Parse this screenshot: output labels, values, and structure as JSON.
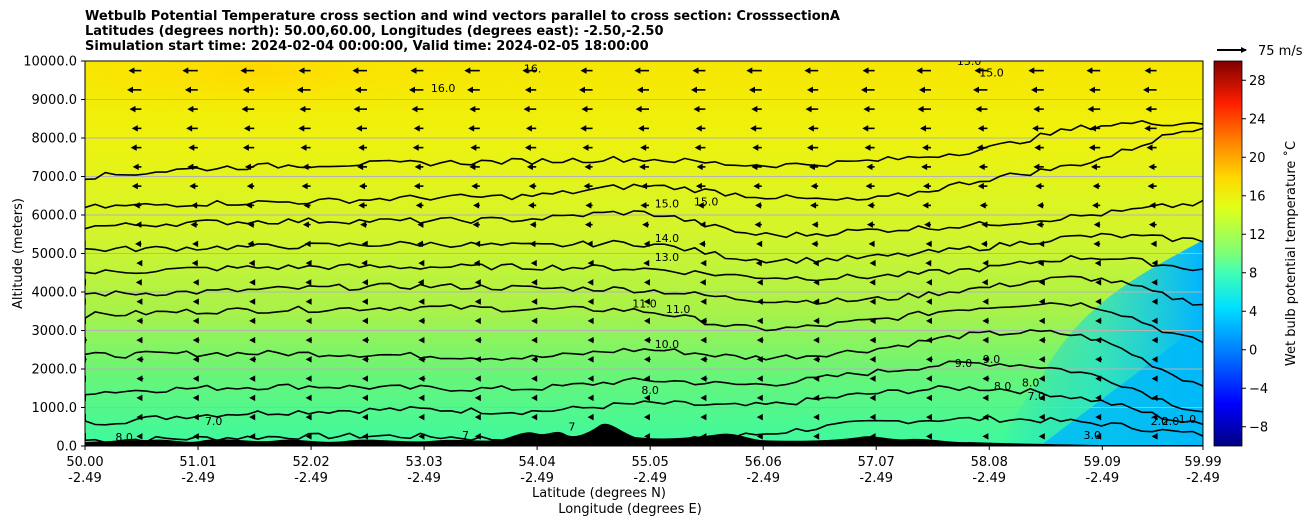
{
  "chart_data": {
    "type": "contour",
    "title_lines": [
      "Wetbulb Potential Temperature cross section and wind vectors parallel to cross section: CrosssectionA",
      "Latitudes (degrees north): 50.00,60.00, Longitudes (degrees east): -2.50,-2.50",
      "Simulation start time: 2024-02-04 00:00:00, Valid time: 2024-02-05 18:00:00"
    ],
    "ylabel": "Altitude (meters)",
    "xlabel_lat": "Latitude (degrees N)",
    "xlabel_lon": "Longitude (degrees E)",
    "xlim": [
      50.0,
      59.99
    ],
    "ylim": [
      0,
      10000
    ],
    "x_ticks": [
      {
        "lat": "50.00",
        "lon": "-2.49"
      },
      {
        "lat": "51.01",
        "lon": "-2.49"
      },
      {
        "lat": "52.02",
        "lon": "-2.49"
      },
      {
        "lat": "53.03",
        "lon": "-2.49"
      },
      {
        "lat": "54.04",
        "lon": "-2.49"
      },
      {
        "lat": "55.05",
        "lon": "-2.49"
      },
      {
        "lat": "56.06",
        "lon": "-2.49"
      },
      {
        "lat": "57.07",
        "lon": "-2.49"
      },
      {
        "lat": "58.08",
        "lon": "-2.49"
      },
      {
        "lat": "59.09",
        "lon": "-2.49"
      },
      {
        "lat": "59.99",
        "lon": "-2.49"
      }
    ],
    "y_ticks": [
      "0.0",
      "1000.0",
      "2000.0",
      "3000.0",
      "4000.0",
      "5000.0",
      "6000.0",
      "7000.0",
      "8000.0",
      "9000.0",
      "10000.0"
    ],
    "grid": "horizontal",
    "colorbar": {
      "label": "Wet bulb potential temperature ˚C",
      "range": [
        -10,
        30
      ],
      "ticks": [
        "-8",
        "-4",
        "0",
        "4",
        "8",
        "12",
        "16",
        "20",
        "24",
        "28"
      ]
    },
    "quiver_key": "75 m/s",
    "contour_levels": [
      {
        "value": 7.0,
        "heights": [
          150,
          200,
          250,
          250,
          150,
          100,
          300,
          600,
          700,
          600,
          300
        ]
      },
      {
        "value": 8.0,
        "heights": [
          600,
          800,
          900,
          950,
          900,
          1100,
          1050,
          1350,
          1500,
          1200,
          550
        ]
      },
      {
        "value": 9.0,
        "heights": [
          1400,
          1500,
          1550,
          1500,
          1500,
          1700,
          1600,
          1900,
          2150,
          1850,
          900
        ]
      },
      {
        "value": 10.0,
        "heights": [
          2350,
          2400,
          2400,
          2350,
          2300,
          2500,
          2300,
          2500,
          2900,
          2800,
          1600
        ]
      },
      {
        "value": 11.0,
        "heights": [
          3400,
          3500,
          3550,
          3600,
          3550,
          3500,
          3050,
          3250,
          3600,
          3650,
          2700
        ]
      },
      {
        "value": 12.0,
        "heights": [
          3950,
          4000,
          4100,
          4150,
          4100,
          4050,
          3800,
          3800,
          4100,
          4350,
          3700
        ]
      },
      {
        "value": 13.0,
        "heights": [
          4500,
          4600,
          4650,
          4650,
          4650,
          4600,
          4400,
          4400,
          4600,
          4900,
          4600
        ]
      },
      {
        "value": 14.0,
        "heights": [
          5100,
          5150,
          5200,
          5250,
          5200,
          5250,
          4850,
          4900,
          5150,
          5450,
          5350
        ]
      },
      {
        "value": 15.0,
        "heights": [
          5700,
          5800,
          5850,
          5850,
          5900,
          6050,
          5500,
          5600,
          5750,
          6000,
          6300
        ]
      },
      {
        "value": 15.5,
        "heights": [
          6200,
          6300,
          6350,
          6450,
          6500,
          6750,
          6500,
          6400,
          6900,
          7400,
          8300
        ]
      },
      {
        "value": 16.0,
        "heights": [
          7000,
          7200,
          7300,
          7350,
          7400,
          7450,
          7300,
          7400,
          7700,
          8300,
          8400
        ]
      }
    ],
    "contour_labels": [
      {
        "text": "8.0",
        "x": 50.35,
        "y": 130
      },
      {
        "text": "7.0",
        "x": 51.15,
        "y": 550
      },
      {
        "text": "16.0",
        "x": 53.2,
        "y": 9200
      },
      {
        "text": "16.",
        "x": 54.0,
        "y": 9700
      },
      {
        "text": "15.0",
        "x": 55.2,
        "y": 6200
      },
      {
        "text": "15.0",
        "x": 55.55,
        "y": 6250
      },
      {
        "text": "14.0",
        "x": 55.2,
        "y": 5300
      },
      {
        "text": "13.0",
        "x": 55.2,
        "y": 4800
      },
      {
        "text": "11.0",
        "x": 55.0,
        "y": 3600
      },
      {
        "text": "11.0",
        "x": 55.3,
        "y": 3450
      },
      {
        "text": "10.0",
        "x": 55.2,
        "y": 2550
      },
      {
        "text": "8.0",
        "x": 55.05,
        "y": 1350
      },
      {
        "text": "13.0",
        "x": 57.9,
        "y": 9900
      },
      {
        "text": "15.0",
        "x": 58.1,
        "y": 9600
      },
      {
        "text": "9.0",
        "x": 57.85,
        "y": 2050
      },
      {
        "text": "9.0",
        "x": 58.1,
        "y": 2150
      },
      {
        "text": "8.0",
        "x": 58.2,
        "y": 1450
      },
      {
        "text": "8.0",
        "x": 58.45,
        "y": 1550
      },
      {
        "text": "7.0",
        "x": 58.5,
        "y": 1200
      },
      {
        "text": "3.0",
        "x": 59.0,
        "y": 180
      },
      {
        "text": "2.0",
        "x": 59.6,
        "y": 550
      },
      {
        "text": "2.0",
        "x": 59.7,
        "y": 550
      },
      {
        "text": "1.0",
        "x": 59.85,
        "y": 600
      },
      {
        "text": "7",
        "x": 53.4,
        "y": 180
      },
      {
        "text": "7",
        "x": 54.35,
        "y": 400
      }
    ],
    "wind_speed_by_height": [
      {
        "y": 0,
        "ms": 3
      },
      {
        "y": 2000,
        "ms": 8
      },
      {
        "y": 5000,
        "ms": 15
      },
      {
        "y": 8000,
        "ms": 28
      },
      {
        "y": 10000,
        "ms": 38
      }
    ]
  }
}
